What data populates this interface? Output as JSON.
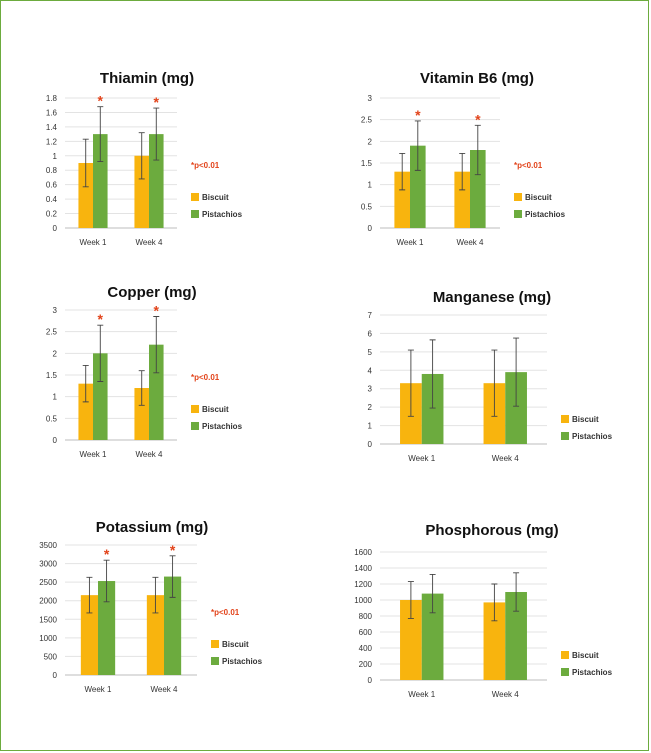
{
  "chart_data": [
    {
      "type": "bar",
      "title": "Thiamin (mg)",
      "categories": [
        "Week 1",
        "Week 4"
      ],
      "series": [
        {
          "name": "Biscuit",
          "color": "#f8b40e",
          "values": [
            0.9,
            1.0
          ],
          "error": [
            0.33,
            0.32
          ]
        },
        {
          "name": "Pistachios",
          "color": "#6cab3e",
          "values": [
            1.3,
            1.3
          ],
          "error": [
            0.38,
            0.36
          ]
        }
      ],
      "ylim": [
        0,
        1.8
      ],
      "yticks": [
        0,
        0.2,
        0.4,
        0.6,
        0.8,
        1,
        1.2,
        1.4,
        1.6,
        1.8
      ],
      "significant": [
        true,
        true
      ],
      "note": "*p<0.01",
      "legend_position": "right",
      "grid": true
    },
    {
      "type": "bar",
      "title": "Vitamin B6 (mg)",
      "categories": [
        "Week 1",
        "Week 4"
      ],
      "series": [
        {
          "name": "Biscuit",
          "color": "#f8b40e",
          "values": [
            1.3,
            1.3
          ],
          "error": [
            0.42,
            0.42
          ]
        },
        {
          "name": "Pistachios",
          "color": "#6cab3e",
          "values": [
            1.9,
            1.8
          ],
          "error": [
            0.57,
            0.57
          ]
        }
      ],
      "ylim": [
        0,
        3
      ],
      "yticks": [
        0,
        0.5,
        1,
        1.5,
        2,
        2.5,
        3
      ],
      "significant": [
        true,
        true
      ],
      "note": "*p<0.01",
      "legend_position": "right",
      "grid": true
    },
    {
      "type": "bar",
      "title": "Copper (mg)",
      "categories": [
        "Week 1",
        "Week 4"
      ],
      "series": [
        {
          "name": "Biscuit",
          "color": "#f8b40e",
          "values": [
            1.3,
            1.2
          ],
          "error": [
            0.42,
            0.4
          ]
        },
        {
          "name": "Pistachios",
          "color": "#6cab3e",
          "values": [
            2.0,
            2.2
          ],
          "error": [
            0.65,
            0.65
          ]
        }
      ],
      "ylim": [
        0,
        3
      ],
      "yticks": [
        0,
        0.5,
        1,
        1.5,
        2,
        2.5,
        3
      ],
      "significant": [
        true,
        true
      ],
      "note": "*p<0.01",
      "legend_position": "right",
      "grid": true
    },
    {
      "type": "bar",
      "title": "Manganese (mg)",
      "categories": [
        "Week 1",
        "Week 4"
      ],
      "series": [
        {
          "name": "Biscuit",
          "color": "#f8b40e",
          "values": [
            3.3,
            3.3
          ],
          "error": [
            1.8,
            1.8
          ]
        },
        {
          "name": "Pistachios",
          "color": "#6cab3e",
          "values": [
            3.8,
            3.9
          ],
          "error": [
            1.85,
            1.85
          ]
        }
      ],
      "ylim": [
        0,
        7
      ],
      "yticks": [
        0,
        1,
        2,
        3,
        4,
        5,
        6,
        7
      ],
      "significant": [
        false,
        false
      ],
      "note": "",
      "legend_position": "right",
      "grid": true
    },
    {
      "type": "bar",
      "title": "Potassium (mg)",
      "categories": [
        "Week 1",
        "Week 4"
      ],
      "series": [
        {
          "name": "Biscuit",
          "color": "#f8b40e",
          "values": [
            2150,
            2150
          ],
          "error": [
            480,
            480
          ]
        },
        {
          "name": "Pistachios",
          "color": "#6cab3e",
          "values": [
            2530,
            2650
          ],
          "error": [
            560,
            560
          ]
        }
      ],
      "ylim": [
        0,
        3500
      ],
      "yticks": [
        0,
        500,
        1000,
        1500,
        2000,
        2500,
        3000,
        3500
      ],
      "significant": [
        true,
        true
      ],
      "note": "*p<0.01",
      "legend_position": "right",
      "grid": true
    },
    {
      "type": "bar",
      "title": "Phosphorous (mg)",
      "categories": [
        "Week 1",
        "Week 4"
      ],
      "series": [
        {
          "name": "Biscuit",
          "color": "#f8b40e",
          "values": [
            1000,
            970
          ],
          "error": [
            230,
            230
          ]
        },
        {
          "name": "Pistachios",
          "color": "#6cab3e",
          "values": [
            1080,
            1100
          ],
          "error": [
            240,
            240
          ]
        }
      ],
      "ylim": [
        0,
        1600
      ],
      "yticks": [
        0,
        200,
        400,
        600,
        800,
        1000,
        1200,
        1400,
        1600
      ],
      "significant": [
        false,
        false
      ],
      "note": "",
      "legend_position": "right",
      "grid": true
    }
  ]
}
